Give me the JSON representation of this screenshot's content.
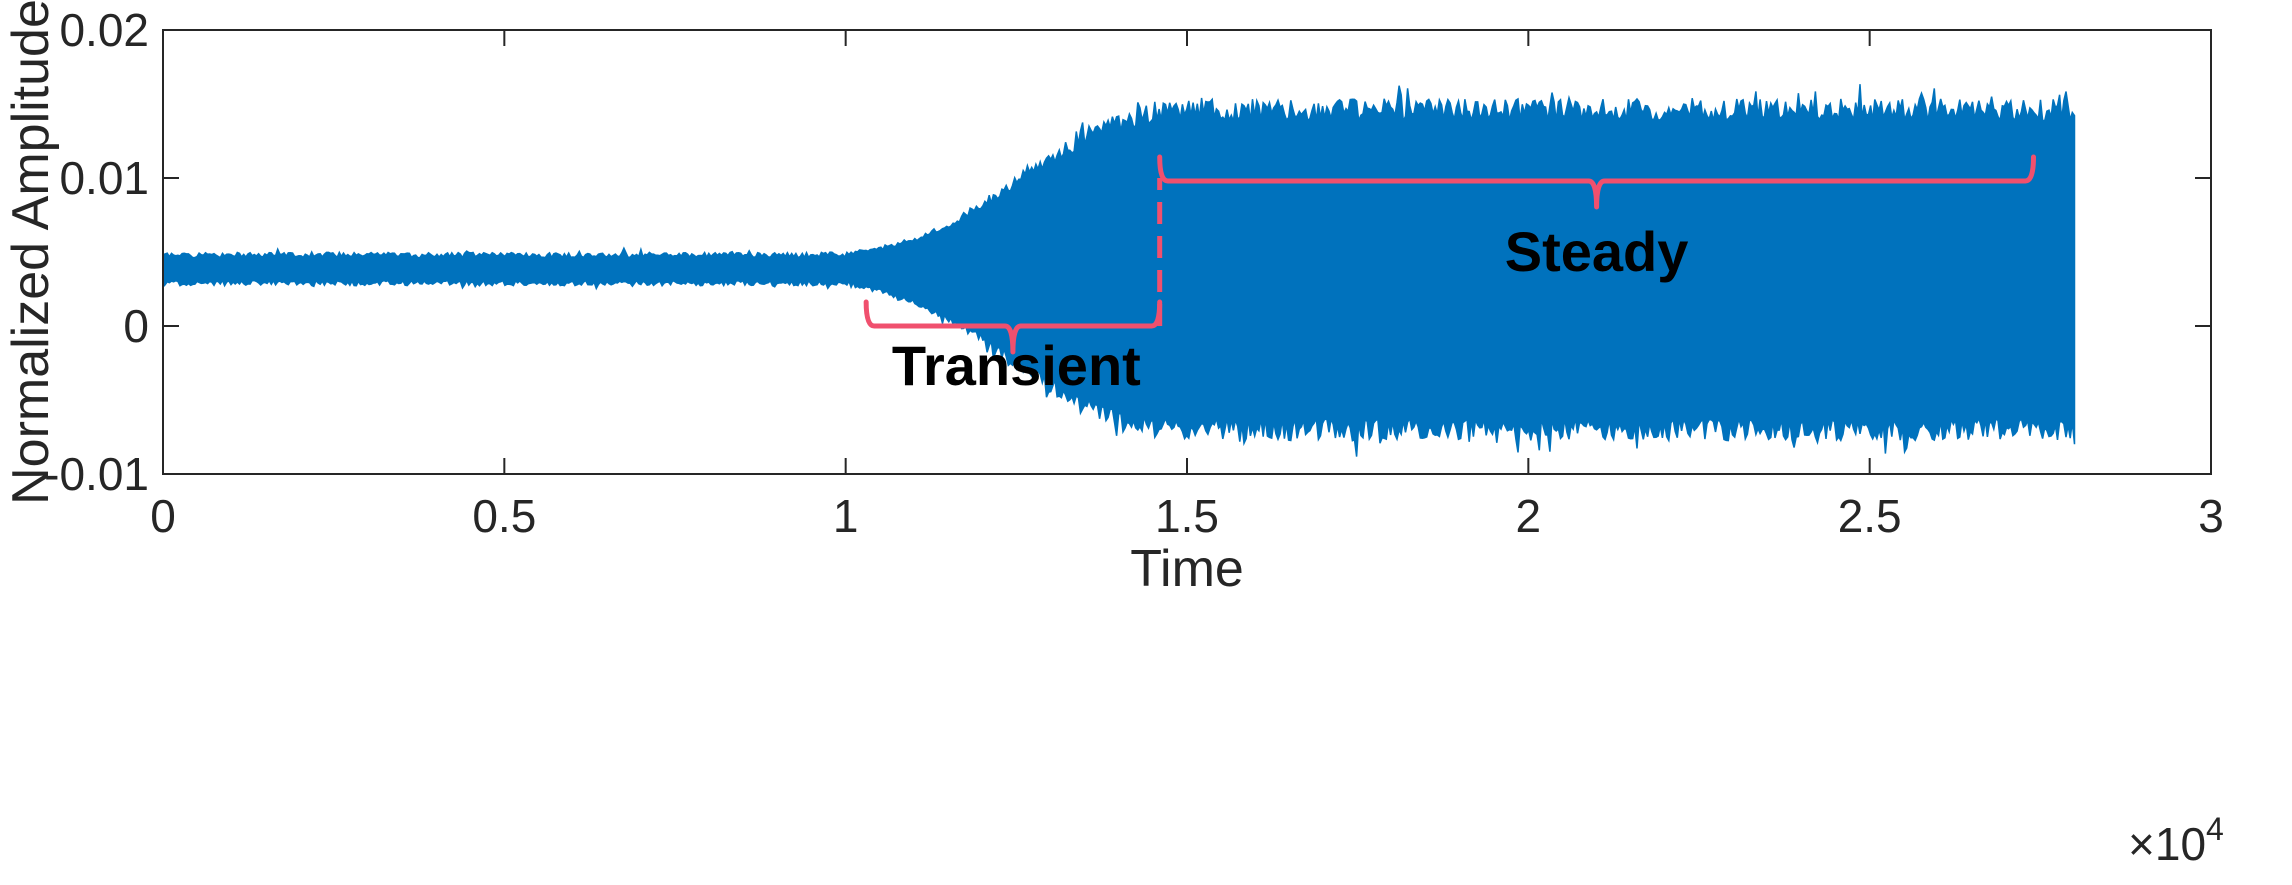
{
  "chart_data": {
    "type": "line",
    "title": "",
    "xlabel": "Time",
    "ylabel": "Normalized Amplitude",
    "x_exponent_label": "×10",
    "x_exponent_power": "4",
    "xlim": [
      0,
      30000
    ],
    "ylim": [
      -0.01,
      0.02
    ],
    "x_ticks": [
      0,
      5000,
      10000,
      15000,
      20000,
      25000,
      30000
    ],
    "x_tick_labels": [
      "0",
      "0.5",
      "1",
      "1.5",
      "2",
      "2.5",
      "3"
    ],
    "y_ticks": [
      -0.01,
      0,
      0.01,
      0.02
    ],
    "y_tick_labels": [
      "-0.01",
      "0",
      "0.01",
      "0.02"
    ],
    "grid": false,
    "legend": "none",
    "series_color": "#0072BD",
    "annotation_color": "#F0506E",
    "signal": {
      "start": 0,
      "end": 28000,
      "envelope_x": [
        0,
        10000,
        10500,
        11000,
        11500,
        12000,
        12500,
        13000,
        13500,
        14000,
        14500,
        15000,
        28000
      ],
      "envelope_upper": [
        0.0048,
        0.0048,
        0.0052,
        0.0058,
        0.0068,
        0.0082,
        0.0098,
        0.0114,
        0.0128,
        0.0138,
        0.0144,
        0.0146,
        0.0146
      ],
      "envelope_lower": [
        0.0029,
        0.0029,
        0.0024,
        0.0016,
        0.0005,
        -0.0009,
        -0.0025,
        -0.004,
        -0.0054,
        -0.0064,
        -0.0069,
        -0.007,
        -0.007
      ]
    },
    "annotations": [
      {
        "name": "transient",
        "label": "Transient",
        "x_start": 10300,
        "x_end": 14600,
        "bracket_y": 0.0,
        "label_x": 12500,
        "label_y": -0.004
      },
      {
        "name": "steady",
        "label": "Steady",
        "x_start": 14600,
        "x_end": 27400,
        "bracket_y": 0.0098,
        "label_x": 21000,
        "label_y": 0.0037
      }
    ],
    "boundary_line": {
      "x": 14600,
      "y_from": 0.0,
      "y_to": 0.01
    }
  }
}
